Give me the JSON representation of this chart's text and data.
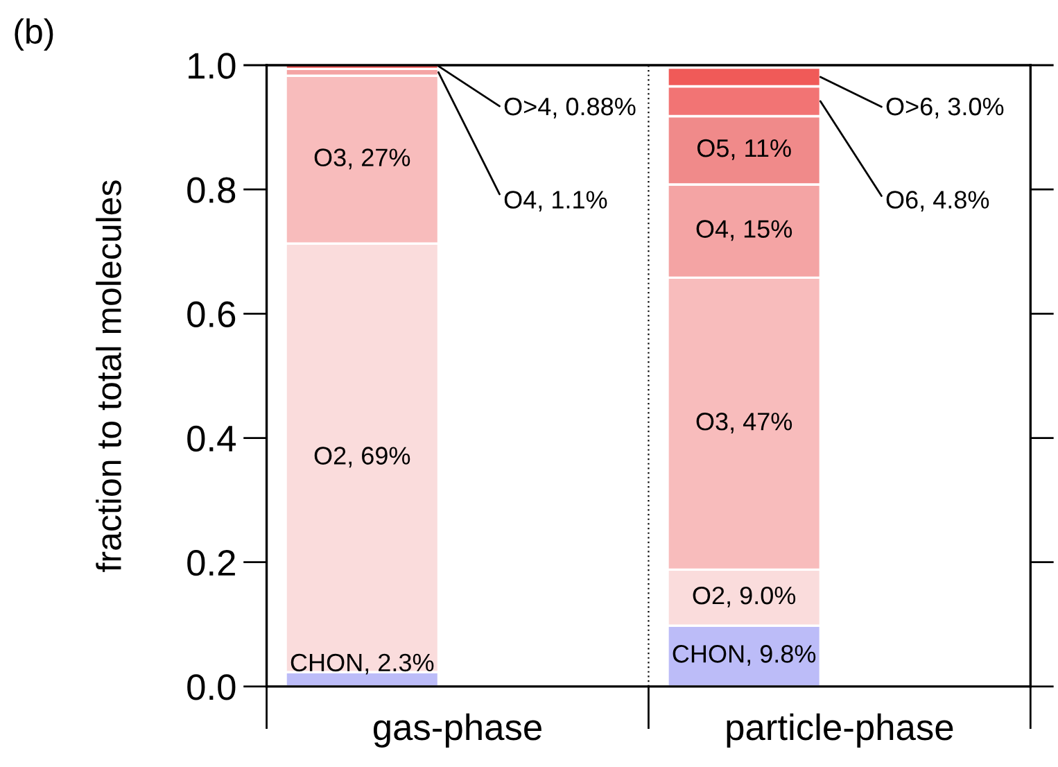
{
  "chart_data": {
    "type": "bar",
    "stacked": true,
    "ylabel": "fraction to total molecules",
    "annotations": [
      "(b)"
    ],
    "categories": [
      "gas-phase",
      "particle-phase"
    ],
    "series": [
      {
        "color": "#bcbcf8",
        "values": [
          0.023,
          0.098
        ],
        "value_labels": [
          "CHON, 2.3%",
          "CHON, 9.8%"
        ]
      },
      {
        "color": "#fadcdc",
        "values": [
          0.69,
          0.09
        ],
        "value_labels": [
          "O2, 69%",
          "O2, 9.0%"
        ]
      },
      {
        "color": "#f8bcbc",
        "values": [
          0.27,
          0.47
        ],
        "value_labels": [
          "O3, 27%",
          "O3, 47%"
        ]
      },
      {
        "color": "#f4a4a4",
        "values": [
          0.011,
          0.15
        ],
        "value_labels": [
          "O4, 1.1%",
          "O4, 15%"
        ]
      },
      {
        "color": "#f08a8a",
        "values": [
          null,
          0.11
        ],
        "value_labels": [
          null,
          "O5, 11%"
        ]
      },
      {
        "color": "#f27474",
        "values": [
          null,
          0.048
        ],
        "value_labels": [
          null,
          "O6, 4.8%"
        ]
      },
      {
        "color": "#f05a58",
        "values": [
          0.0088,
          0.03
        ],
        "value_labels": [
          "O>4, 0.88%",
          "O>6, 3.0%"
        ]
      }
    ],
    "ylim": [
      0,
      1.0
    ],
    "yticks": [
      {
        "value": 0,
        "label": "0.0"
      },
      0.2,
      0.4,
      0.6,
      0.8,
      {
        "value": 1,
        "label": "1.0"
      }
    ],
    "grid": false,
    "legend": false
  }
}
